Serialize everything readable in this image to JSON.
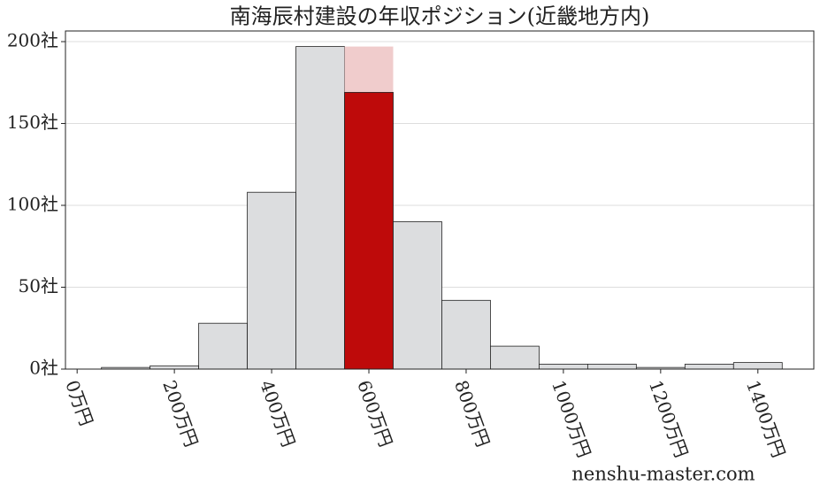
{
  "chart_data": {
    "type": "histogram",
    "title": "南海辰村建設の年収ポジション(近畿地方内)",
    "bins": [
      50,
      150,
      250,
      350,
      450,
      550,
      650,
      750,
      850,
      950,
      1050,
      1150,
      1250,
      1350,
      1450
    ],
    "values": [
      1,
      2,
      28,
      108,
      197,
      197,
      90,
      42,
      14,
      3,
      3,
      1,
      3,
      4
    ],
    "color": "#dcdddf",
    "highlight_values": [
      null,
      null,
      null,
      null,
      null,
      169,
      null,
      null,
      null,
      null,
      null,
      null,
      null,
      null
    ],
    "highlight_color": "#be0a0a",
    "highlight_bg_color": "#f0cccc",
    "xlim": [
      -24,
      1515
    ],
    "xticks": [
      {
        "value": 0,
        "label": "0万円"
      },
      {
        "value": 200,
        "label": "200万円"
      },
      {
        "value": 400,
        "label": "400万円"
      },
      {
        "value": 600,
        "label": "600万円"
      },
      {
        "value": 800,
        "label": "800万円"
      },
      {
        "value": 1000,
        "label": "1000万円"
      },
      {
        "value": 1200,
        "label": "1200万円"
      },
      {
        "value": 1400,
        "label": "1400万円"
      }
    ],
    "ylim": [
      0,
      206.5
    ],
    "yticks": [
      {
        "value": 0,
        "label": "0社"
      },
      {
        "value": 50,
        "label": "50社"
      },
      {
        "value": 100,
        "label": "100社"
      },
      {
        "value": 150,
        "label": "150社"
      },
      {
        "value": 200,
        "label": "200社"
      }
    ],
    "grid": true,
    "watermark": "nenshu-master.com"
  }
}
